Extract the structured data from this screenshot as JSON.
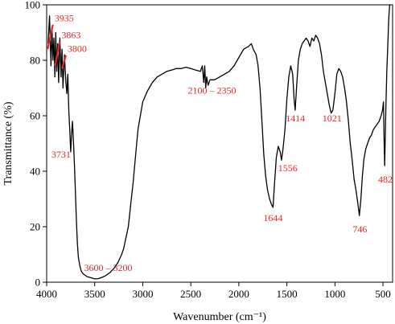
{
  "chart_data": {
    "type": "line",
    "title": "",
    "xlabel": "Wavenumber (cm⁻¹)",
    "ylabel": "Transmittance (%)",
    "xlim": [
      4000,
      400
    ],
    "ylim": [
      0,
      100
    ],
    "x_ticks": [
      4000,
      3500,
      3000,
      2500,
      2000,
      1500,
      1000,
      500
    ],
    "y_ticks": [
      0,
      20,
      40,
      60,
      80,
      100
    ],
    "x_tick_labels": [
      "4000",
      "3500",
      "3000",
      "2500",
      "2000",
      "1500",
      "1000",
      "500"
    ],
    "y_tick_labels": [
      "0",
      "20",
      "40",
      "60",
      "80",
      "100"
    ],
    "grid": false,
    "legend": "none",
    "series_color": "#000000",
    "annotation_color": "#e8242b",
    "series": [
      {
        "x": [
          3985,
          3970,
          3955,
          3945,
          3935,
          3925,
          3915,
          3905,
          3895,
          3885,
          3875,
          3863,
          3850,
          3840,
          3830,
          3815,
          3800,
          3790,
          3780,
          3770,
          3760,
          3750,
          3740,
          3731,
          3720,
          3710,
          3700,
          3690,
          3680,
          3670,
          3655,
          3640,
          3620,
          3600,
          3580,
          3560,
          3530,
          3500,
          3460,
          3420,
          3380,
          3340,
          3300,
          3260,
          3220,
          3200,
          3150,
          3100,
          3050,
          3000,
          2950,
          2900,
          2850,
          2800,
          2750,
          2700,
          2650,
          2600,
          2550,
          2500,
          2450,
          2400,
          2380,
          2365,
          2355,
          2345,
          2335,
          2320,
          2300,
          2250,
          2200,
          2150,
          2100,
          2050,
          2000,
          1950,
          1900,
          1870,
          1850,
          1820,
          1800,
          1780,
          1760,
          1740,
          1720,
          1700,
          1680,
          1660,
          1644,
          1630,
          1610,
          1590,
          1570,
          1556,
          1540,
          1520,
          1500,
          1480,
          1460,
          1440,
          1425,
          1414,
          1400,
          1380,
          1360,
          1340,
          1320,
          1300,
          1280,
          1260,
          1240,
          1220,
          1200,
          1180,
          1160,
          1140,
          1120,
          1100,
          1080,
          1060,
          1040,
          1021,
          1000,
          980,
          960,
          940,
          920,
          900,
          880,
          860,
          840,
          820,
          800,
          780,
          760,
          746,
          730,
          715,
          700,
          680,
          660,
          640,
          620,
          600,
          580,
          560,
          540,
          520,
          505,
          495,
          488,
          482,
          470,
          460,
          450,
          440,
          430,
          420
        ],
        "y": [
          86,
          96,
          78,
          92,
          80,
          88,
          74,
          90,
          76,
          86,
          72,
          88,
          74,
          84,
          70,
          82,
          72,
          68,
          75,
          62,
          55,
          47,
          54,
          58,
          50,
          42,
          32,
          22,
          14,
          9,
          6,
          4,
          3,
          2.5,
          2,
          1.8,
          1.5,
          1.2,
          1.3,
          1.8,
          2.5,
          3.5,
          5,
          7,
          10,
          12,
          20,
          36,
          55,
          65,
          69,
          72,
          74,
          75,
          76,
          76.5,
          77,
          77,
          77.5,
          77,
          76.5,
          76,
          78,
          72,
          78,
          70,
          74,
          71,
          73,
          73,
          74,
          75,
          76,
          78,
          81,
          84,
          85,
          86,
          84,
          82,
          78,
          70,
          58,
          46,
          38,
          33,
          30,
          28,
          27,
          35,
          45,
          49,
          47,
          44,
          48,
          55,
          66,
          74,
          78,
          75,
          66,
          62,
          70,
          80,
          84,
          86,
          87,
          88,
          87,
          85,
          88,
          87,
          89,
          88,
          86,
          82,
          76,
          72,
          68,
          64,
          61,
          62,
          68,
          75,
          77,
          76,
          74,
          70,
          65,
          58,
          50,
          44,
          37,
          33,
          28,
          24,
          30,
          38,
          44,
          48,
          50,
          52,
          53,
          55,
          56,
          57,
          58,
          60,
          62,
          65,
          50,
          42,
          62,
          76,
          85,
          95,
          100,
          100
        ]
      }
    ],
    "annotations": [
      {
        "text": "3935",
        "x": 3935,
        "y": 94,
        "ax": 3990,
        "ay": 84
      },
      {
        "text": "3863",
        "x": 3863,
        "y": 88,
        "ax": 3912,
        "ay": 78
      },
      {
        "text": "3800",
        "x": 3800,
        "y": 83,
        "ax": 3840,
        "ay": 77
      },
      {
        "text": "3731",
        "x": 3850,
        "y": 45
      },
      {
        "text": "3600 – 3200",
        "x": 3360,
        "y": 4
      },
      {
        "text": "2100 – 2350",
        "x": 2280,
        "y": 68
      },
      {
        "text": "1644",
        "x": 1644,
        "y": 22
      },
      {
        "text": "1556",
        "x": 1490,
        "y": 40
      },
      {
        "text": "1414",
        "x": 1412,
        "y": 58
      },
      {
        "text": "1021",
        "x": 1030,
        "y": 58
      },
      {
        "text": "746",
        "x": 740,
        "y": 18
      },
      {
        "text": "482",
        "x": 475,
        "y": 36
      }
    ]
  }
}
